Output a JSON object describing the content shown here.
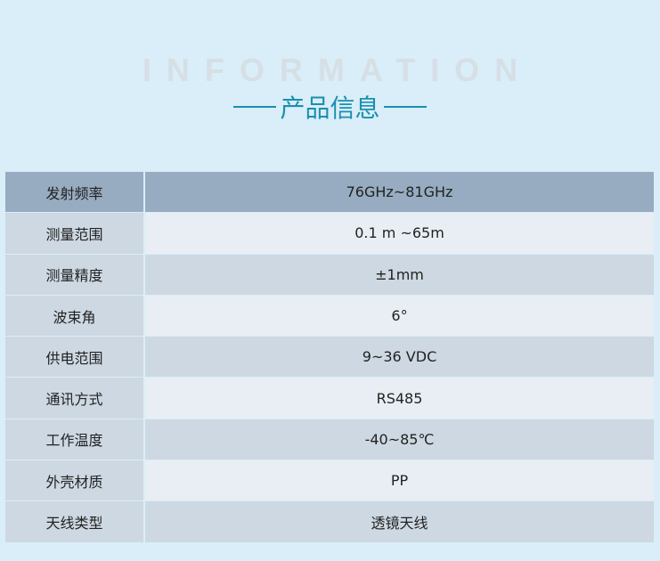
{
  "header": {
    "english": "INFORMATION",
    "chinese": "产品信息"
  },
  "colors": {
    "title": "#1a8fb0",
    "header_row": "#97acc0",
    "dark_row": "#cdd8e2",
    "light_row": "#e8eef3",
    "background": "#d9eef8"
  },
  "specs": [
    {
      "label": "发射频率",
      "value": "76GHz~81GHz"
    },
    {
      "label": "测量范围",
      "value": "0.1 m ~65m"
    },
    {
      "label": "测量精度",
      "value": "±1mm"
    },
    {
      "label": "波束角",
      "value": "6°"
    },
    {
      "label": "供电范围",
      "value": "9~36 VDC"
    },
    {
      "label": "通讯方式",
      "value": "RS485"
    },
    {
      "label": "工作温度",
      "value": "-40~85℃"
    },
    {
      "label": "外壳材质",
      "value": "PP"
    },
    {
      "label": "天线类型",
      "value": "透镜天线"
    }
  ]
}
